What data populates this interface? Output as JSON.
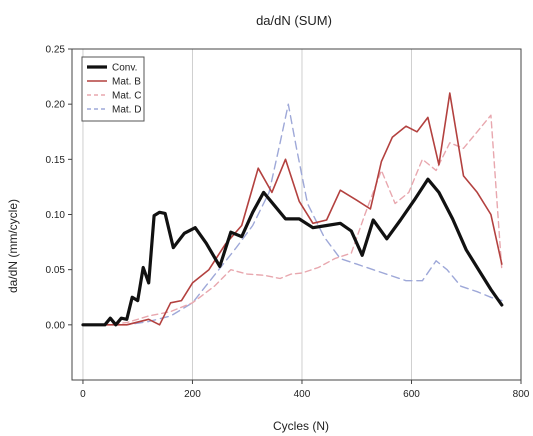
{
  "chart_data": {
    "type": "line",
    "title": "da/dN  (SUM)",
    "xlabel": "Cycles (N)",
    "ylabel": "da/dN (mm/cycle)",
    "xlim": [
      -20,
      800
    ],
    "ylim": [
      -0.05,
      0.25
    ],
    "xticks": [
      0,
      200,
      400,
      600,
      800
    ],
    "yticks": [
      0.0,
      0.05,
      0.1,
      0.15,
      0.2,
      0.25
    ],
    "xtick_labels": [
      "0",
      "200",
      "400",
      "600",
      "800"
    ],
    "ytick_labels": [
      "0.00",
      "0.05",
      "0.10",
      "0.15",
      "0.20",
      "0.25"
    ],
    "grid": {
      "vertical": true,
      "horizontal": false
    },
    "legend_position": "top-left",
    "series": [
      {
        "name": "Conv.",
        "color": "#111111",
        "dash": "solid",
        "x": [
          0,
          20,
          40,
          50,
          60,
          70,
          80,
          90,
          100,
          110,
          120,
          130,
          140,
          150,
          165,
          185,
          205,
          225,
          250,
          270,
          290,
          310,
          330,
          350,
          370,
          395,
          420,
          445,
          470,
          490,
          510,
          530,
          555,
          580,
          605,
          630,
          650,
          675,
          700,
          725,
          745,
          765
        ],
        "y": [
          0.0,
          0.0,
          0.0,
          0.006,
          0.0,
          0.006,
          0.005,
          0.025,
          0.022,
          0.052,
          0.038,
          0.099,
          0.102,
          0.101,
          0.07,
          0.083,
          0.088,
          0.074,
          0.053,
          0.084,
          0.08,
          0.102,
          0.12,
          0.108,
          0.096,
          0.096,
          0.088,
          0.09,
          0.092,
          0.085,
          0.063,
          0.095,
          0.078,
          0.095,
          0.113,
          0.132,
          0.12,
          0.096,
          0.068,
          0.048,
          0.032,
          0.018
        ]
      },
      {
        "name": "Mat. B",
        "color": "#b3413f",
        "dash": "solid",
        "x": [
          0,
          40,
          80,
          120,
          140,
          160,
          180,
          200,
          230,
          260,
          290,
          320,
          345,
          370,
          395,
          420,
          445,
          470,
          500,
          525,
          545,
          565,
          590,
          610,
          630,
          650,
          670,
          695,
          720,
          745,
          765
        ],
        "y": [
          0.0,
          0.0,
          0.0,
          0.005,
          0.0,
          0.02,
          0.022,
          0.038,
          0.05,
          0.073,
          0.09,
          0.142,
          0.12,
          0.15,
          0.112,
          0.092,
          0.095,
          0.122,
          0.113,
          0.105,
          0.148,
          0.17,
          0.18,
          0.175,
          0.188,
          0.145,
          0.21,
          0.135,
          0.12,
          0.1,
          0.055
        ]
      },
      {
        "name": "Mat. C",
        "color": "#e8a7ae",
        "dash": "6 4",
        "x": [
          0,
          40,
          80,
          120,
          160,
          200,
          240,
          270,
          300,
          330,
          360,
          380,
          400,
          430,
          460,
          490,
          515,
          545,
          570,
          595,
          620,
          645,
          670,
          695,
          720,
          745,
          765
        ],
        "y": [
          0.0,
          0.0,
          0.002,
          0.008,
          0.012,
          0.02,
          0.035,
          0.05,
          0.046,
          0.045,
          0.042,
          0.046,
          0.047,
          0.052,
          0.06,
          0.065,
          0.1,
          0.14,
          0.11,
          0.12,
          0.15,
          0.14,
          0.165,
          0.16,
          0.175,
          0.19,
          0.05
        ]
      },
      {
        "name": "Mat. D",
        "color": "#9ea8d8",
        "dash": "8 5",
        "x": [
          0,
          40,
          80,
          120,
          160,
          200,
          240,
          280,
          310,
          340,
          360,
          375,
          390,
          410,
          440,
          470,
          500,
          530,
          560,
          590,
          620,
          645,
          665,
          690,
          720,
          745,
          765
        ],
        "y": [
          0.0,
          0.0,
          0.0,
          0.003,
          0.008,
          0.02,
          0.045,
          0.07,
          0.09,
          0.12,
          0.165,
          0.2,
          0.16,
          0.11,
          0.08,
          0.06,
          0.055,
          0.05,
          0.045,
          0.04,
          0.04,
          0.058,
          0.05,
          0.035,
          0.03,
          0.025,
          0.022
        ]
      }
    ]
  }
}
